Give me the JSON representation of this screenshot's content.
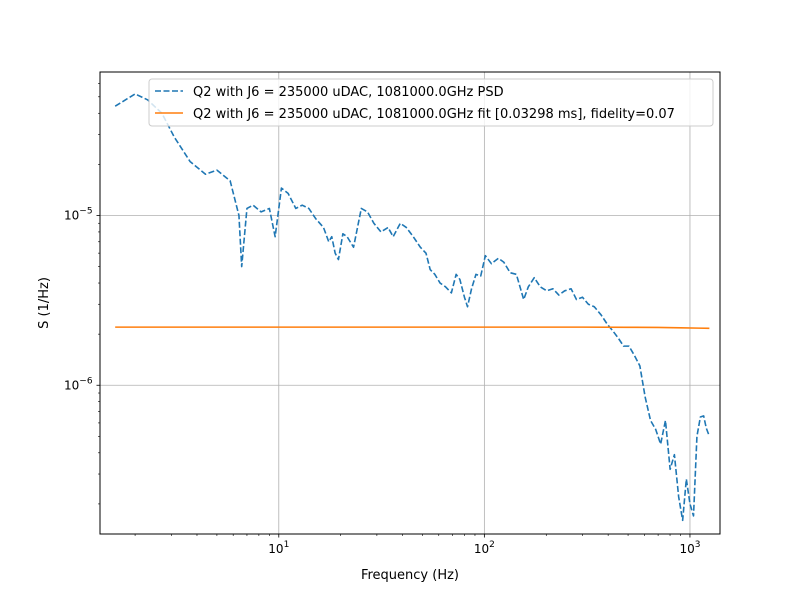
{
  "chart_data": {
    "type": "line",
    "title": "",
    "xlabel": "Frequency (Hz)",
    "ylabel": "S (1/Hz)",
    "xscale": "log",
    "yscale": "log",
    "xlim": [
      1.35,
      1400
    ],
    "ylim": [
      1.33e-07,
      7e-05
    ],
    "grid": true,
    "legend_position": "top-right",
    "x_ticks": [
      {
        "value": 10,
        "base": "10",
        "exp": "1"
      },
      {
        "value": 100,
        "base": "10",
        "exp": "2"
      },
      {
        "value": 1000,
        "base": "10",
        "exp": "3"
      }
    ],
    "y_ticks": [
      {
        "value": 1e-06,
        "base": "10",
        "exp": "−6"
      },
      {
        "value": 1e-05,
        "base": "10",
        "exp": "−5"
      }
    ],
    "series": [
      {
        "name": "Q2 with J6 = 235000 uDAC, 1081000.0GHz PSD",
        "color": "#1f77b4",
        "style": "dashed",
        "x": [
          1.6,
          2.0,
          2.3,
          2.7,
          3.1,
          3.7,
          4.4,
          5.0,
          5.8,
          6.4,
          6.6,
          7.0,
          7.5,
          8.2,
          9.0,
          9.6,
          10.3,
          11.1,
          12.1,
          13.0,
          14.0,
          15.1,
          16.5,
          17.5,
          18.1,
          18.8,
          19.5,
          20.5,
          21.5,
          23.1,
          25.2,
          27.0,
          29.0,
          31.4,
          34.0,
          36.0,
          39.0,
          41.7,
          45.1,
          48.8,
          52.0,
          54.5,
          57.4,
          60.9,
          64.7,
          69.1,
          72.9,
          76.0,
          80.0,
          82.8,
          86.6,
          91.0,
          96.0,
          101.1,
          108.2,
          117.0,
          124.4,
          133.5,
          143.1,
          155.3,
          163.6,
          174.8,
          186.9,
          200.9,
          215.5,
          230.3,
          245.8,
          264.1,
          280.5,
          300.1,
          320.5,
          342.5,
          369.3,
          395.0,
          420.3,
          447.4,
          475.6,
          505.0,
          536.5,
          570.6,
          605.7,
          643.1,
          681.1,
          720.0,
          760.0,
          800.8,
          840.1,
          881.2,
          921.4,
          960.2,
          1000.3,
          1040.6,
          1081.2,
          1123.8,
          1165.9,
          1200.0,
          1243.0
        ],
        "y": [
          4.4e-05,
          5.2e-05,
          4.8e-05,
          4e-05,
          2.9e-05,
          2.08e-05,
          1.75e-05,
          1.85e-05,
          1.6e-05,
          1e-05,
          5e-06,
          1.1e-05,
          1.15e-05,
          1.05e-05,
          1.1e-05,
          7.5e-06,
          1.45e-05,
          1.35e-05,
          1.1e-05,
          1.15e-05,
          1.1e-05,
          9.6e-06,
          8.5e-06,
          7e-06,
          7.5e-06,
          6e-06,
          5.5e-06,
          7.8e-06,
          7.5e-06,
          6.5e-06,
          1.1e-05,
          1.05e-05,
          9e-06,
          8e-06,
          8.5e-06,
          7.5e-06,
          9e-06,
          8.5e-06,
          7.5e-06,
          6.5e-06,
          6e-06,
          4.8e-06,
          4.5e-06,
          4e-06,
          3.8e-06,
          3.5e-06,
          4.5e-06,
          4.2e-06,
          3.3e-06,
          2.9e-06,
          3.7e-06,
          4.5e-06,
          4.4e-06,
          5.8e-06,
          5.2e-06,
          5.6e-06,
          5.3e-06,
          4.6e-06,
          4.5e-06,
          3.2e-06,
          3.8e-06,
          4.3e-06,
          3.8e-06,
          3.6e-06,
          3.7e-06,
          3.4e-06,
          3.6e-06,
          3.7e-06,
          3.2e-06,
          3.3e-06,
          3e-06,
          2.9e-06,
          2.6e-06,
          2.3e-06,
          2.1e-06,
          1.9e-06,
          1.7e-06,
          1.7e-06,
          1.5e-06,
          1.3e-06,
          8.5e-07,
          6.2e-07,
          5.5e-07,
          4.5e-07,
          6.2e-07,
          3.2e-07,
          3.9e-07,
          2.2e-07,
          1.6e-07,
          2.8e-07,
          2e-07,
          1.7e-07,
          5e-07,
          6.5e-07,
          6.6e-07,
          5.6e-07,
          5e-07
        ]
      },
      {
        "name": "Q2 with J6 = 235000 uDAC, 1081000.0GHz fit [0.03298 ms], fidelity=0.07",
        "color": "#ff7f0e",
        "style": "solid",
        "x": [
          1.6,
          10,
          100,
          300,
          500,
          700,
          900,
          1100,
          1243
        ],
        "y": [
          2.2e-06,
          2.2e-06,
          2.2e-06,
          2.2e-06,
          2.195e-06,
          2.19e-06,
          2.18e-06,
          2.17e-06,
          2.165e-06
        ]
      }
    ]
  }
}
